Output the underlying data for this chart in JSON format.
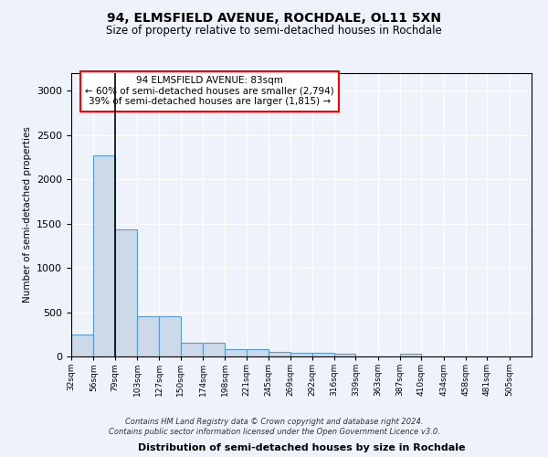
{
  "title": "94, ELMSFIELD AVENUE, ROCHDALE, OL11 5XN",
  "subtitle": "Size of property relative to semi-detached houses in Rochdale",
  "xlabel": "Distribution of semi-detached houses by size in Rochdale",
  "ylabel": "Number of semi-detached properties",
  "bar_color": "#ccd9e8",
  "bar_edge_color": "#5a9ac8",
  "background_color": "#eef2fa",
  "grid_color": "#ffffff",
  "annotation_text": "94 ELMSFIELD AVENUE: 83sqm\n← 60% of semi-detached houses are smaller (2,794)\n39% of semi-detached houses are larger (1,815) →",
  "property_line_x": 79,
  "categories": [
    "32sqm",
    "56sqm",
    "79sqm",
    "103sqm",
    "127sqm",
    "150sqm",
    "174sqm",
    "198sqm",
    "221sqm",
    "245sqm",
    "269sqm",
    "292sqm",
    "316sqm",
    "339sqm",
    "363sqm",
    "387sqm",
    "410sqm",
    "434sqm",
    "458sqm",
    "481sqm",
    "505sqm"
  ],
  "bin_edges": [
    32,
    56,
    79,
    103,
    127,
    150,
    174,
    198,
    221,
    245,
    269,
    292,
    316,
    339,
    363,
    387,
    410,
    434,
    458,
    481,
    505,
    529
  ],
  "values": [
    250,
    2270,
    1430,
    450,
    450,
    160,
    160,
    85,
    85,
    50,
    45,
    45,
    30,
    0,
    0,
    35,
    0,
    0,
    0,
    0,
    0
  ],
  "ylim": [
    0,
    3200
  ],
  "yticks": [
    0,
    500,
    1000,
    1500,
    2000,
    2500,
    3000
  ],
  "footer": "Contains HM Land Registry data © Crown copyright and database right 2024.\nContains public sector information licensed under the Open Government Licence v3.0."
}
